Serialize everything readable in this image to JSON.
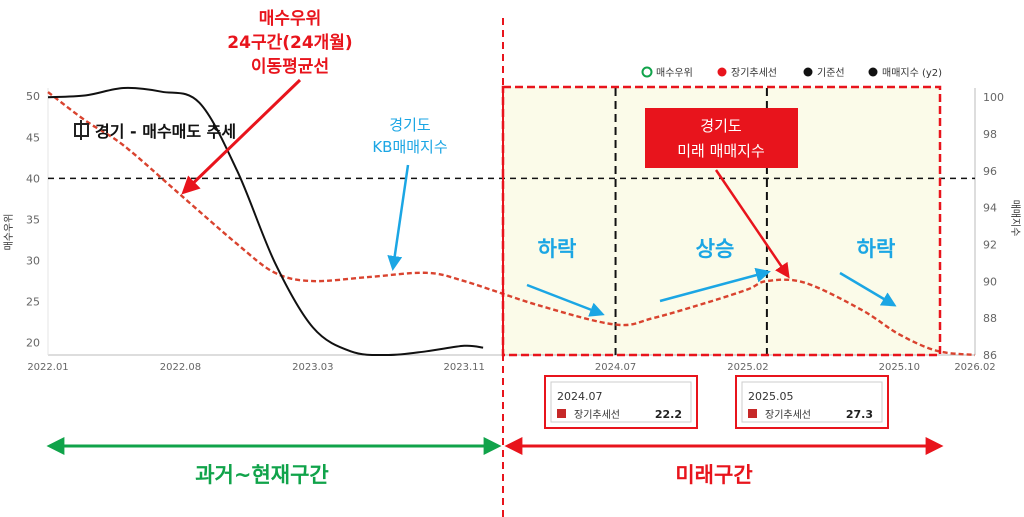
{
  "annotations": {
    "red_top": [
      "매수우위",
      "24구간(24개월)",
      "이동평균선"
    ],
    "blue_kb": [
      "경기도",
      "KB매매지수"
    ],
    "future_box": [
      "경기도",
      "미래 매매지수"
    ],
    "fall1": "하락",
    "rise": "상승",
    "fall2": "하락",
    "past_label": "과거~현재구간",
    "future_label": "미래구간",
    "chart_title": "경기 - 매수매도 추세"
  },
  "tooltips": [
    {
      "date": "2024.07",
      "series": "장기추세선",
      "value": "22.2"
    },
    {
      "date": "2025.05",
      "series": "장기추세선",
      "value": "27.3"
    }
  ],
  "colors": {
    "red": "#e8141c",
    "blue": "#1ba6e4",
    "green": "#10a34a",
    "trend": "#d9432f",
    "black": "#111111",
    "future_fill": "#fbfbe9"
  },
  "chart_data": {
    "type": "line",
    "legend": [
      "매수우위",
      "장기추세선",
      "기준선",
      "매매지수 (y2)"
    ],
    "legend_position": "top-right",
    "x_ticks": [
      "2022.01",
      "2022.08",
      "2023.03",
      "2023.11",
      "2024.07",
      "2025.02",
      "2025.10",
      "2026.02"
    ],
    "ylabel": "매수우위",
    "y2label": "매매지수",
    "ylim": [
      18.5,
      51
    ],
    "y_ticks": [
      20,
      25,
      30,
      35,
      40,
      45,
      50
    ],
    "y2lim": [
      86,
      100.5
    ],
    "y2_ticks": [
      86,
      88,
      90,
      92,
      94,
      96,
      98,
      100
    ],
    "baseline": 40,
    "vertical_markers": [
      "2024.07",
      "2025.03"
    ],
    "series": [
      {
        "name": "장기추세선",
        "axis": "y",
        "style": "dashed",
        "x": [
          "2022.01",
          "2022.03",
          "2022.05",
          "2022.08",
          "2022.11",
          "2023.01",
          "2023.03",
          "2023.06",
          "2023.09",
          "2023.11",
          "2024.03",
          "2024.07",
          "2024.09",
          "2024.12",
          "2025.02",
          "2025.03",
          "2025.05",
          "2025.08",
          "2025.10",
          "2025.12",
          "2026.02"
        ],
        "values": [
          50.5,
          47,
          44,
          38,
          32,
          28.5,
          27.5,
          28,
          28.5,
          27.5,
          24.5,
          22.2,
          23,
          25,
          26.5,
          27.5,
          27.3,
          24,
          21,
          19,
          18.5
        ]
      },
      {
        "name": "매매지수",
        "axis": "y2",
        "style": "solid",
        "x": [
          "2022.01",
          "2022.03",
          "2022.05",
          "2022.07",
          "2022.09",
          "2022.11",
          "2023.01",
          "2023.03",
          "2023.05",
          "2023.07",
          "2023.09",
          "2023.11",
          "2023.12"
        ],
        "values": [
          100,
          100.1,
          100.5,
          100.3,
          99.7,
          96,
          91,
          87.5,
          86.2,
          86,
          86.2,
          86.5,
          86.4
        ]
      }
    ]
  }
}
